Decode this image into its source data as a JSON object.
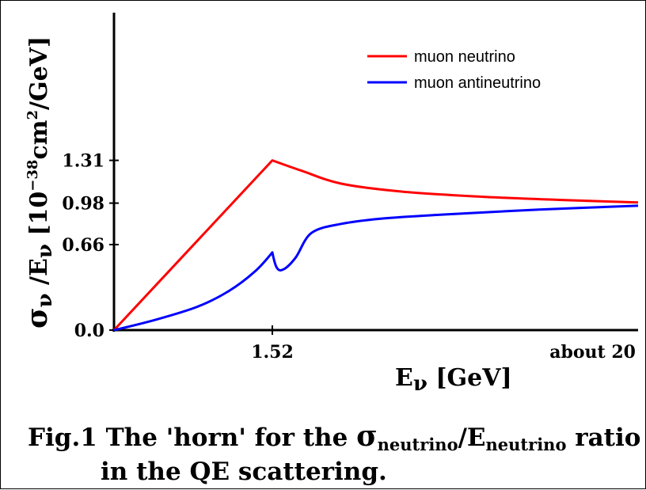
{
  "chart_data": {
    "type": "line",
    "caption": {
      "line1_prefix": "Fig.1 The 'horn' for the ",
      "sigma": "σ",
      "sub1": "neutrino",
      "slash": "/E",
      "sub2": "neutrino",
      "line1_suffix": " ratio",
      "line2": "in the QE scattering."
    },
    "xlabel": {
      "main": "E",
      "sub": "ν",
      "unit": " [GeV]"
    },
    "ylabel": {
      "sigma": "σ",
      "sub1": "ν",
      "mid": " /E",
      "sub2": "ν",
      "unit_open": "  [10",
      "exp1": "−38",
      "unit_mid": "cm",
      "exp2": "2",
      "unit_close": "/GeV]"
    },
    "x_ticks": [
      {
        "value": 1.52,
        "label": "1.52"
      },
      {
        "value": 20,
        "label": "about 20"
      }
    ],
    "y_ticks": [
      {
        "value": 0.0,
        "label": "0.0"
      },
      {
        "value": 0.66,
        "label": "0.66"
      },
      {
        "value": 0.98,
        "label": "0.98"
      },
      {
        "value": 1.31,
        "label": "1.31"
      }
    ],
    "ylim": [
      0,
      2.45
    ],
    "series": [
      {
        "name": "muon neutrino",
        "color": "#ff0000",
        "points": [
          [
            0,
            0
          ],
          [
            1.52,
            1.31
          ],
          [
            3.0,
            1.23
          ],
          [
            5.0,
            1.13
          ],
          [
            8.0,
            1.07
          ],
          [
            12.0,
            1.03
          ],
          [
            16.0,
            1.005
          ],
          [
            20.0,
            0.985
          ]
        ]
      },
      {
        "name": "muon antineutrino",
        "color": "#0000ff",
        "points": [
          [
            0,
            0
          ],
          [
            0.4,
            0.08
          ],
          [
            0.8,
            0.18
          ],
          [
            1.1,
            0.3
          ],
          [
            1.35,
            0.45
          ],
          [
            1.52,
            0.6
          ],
          [
            1.75,
            0.48
          ],
          [
            2.1,
            0.47
          ],
          [
            2.7,
            0.56
          ],
          [
            3.5,
            0.75
          ],
          [
            5.0,
            0.82
          ],
          [
            7.0,
            0.86
          ],
          [
            10.0,
            0.89
          ],
          [
            15.0,
            0.93
          ],
          [
            20.0,
            0.96
          ]
        ]
      }
    ]
  }
}
